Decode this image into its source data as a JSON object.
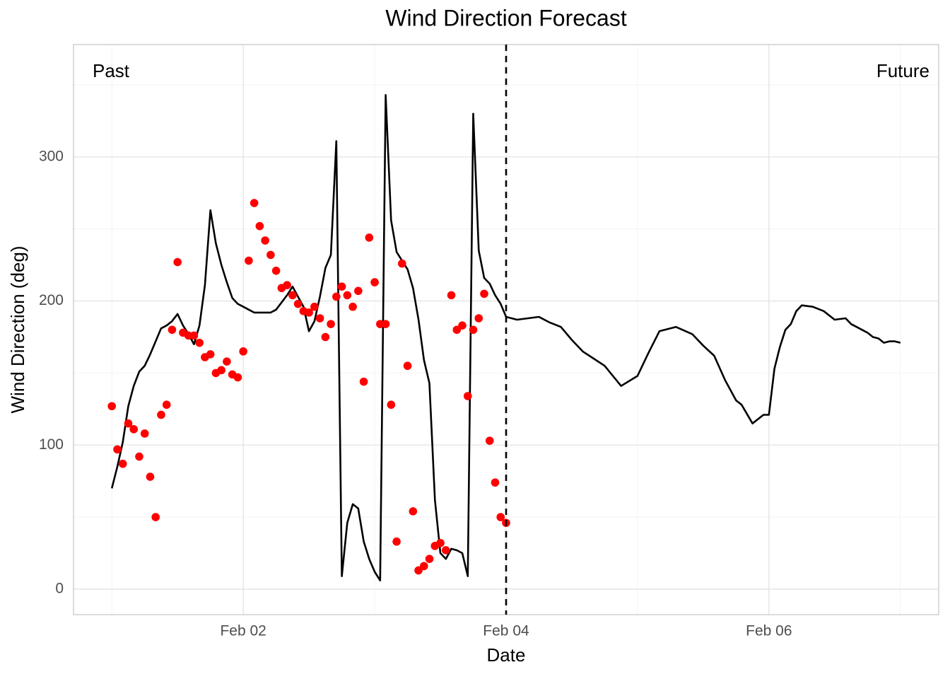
{
  "chart_data": {
    "type": "line",
    "title": "Wind Direction Forecast",
    "x_label": "Date",
    "y_label": "Wind Direction (deg)",
    "annotations": [
      "Past",
      "Future"
    ],
    "vline": 72,
    "xlim": [
      -7,
      151
    ],
    "xticks": [
      {
        "value": 24,
        "label": "Feb 02"
      },
      {
        "value": 72,
        "label": "Feb 04"
      },
      {
        "value": 120,
        "label": "Feb 06"
      }
    ],
    "minor_xticks": [
      0,
      48,
      96,
      144
    ],
    "ylim": [
      -17.7,
      378
    ],
    "yticks": [
      0,
      100,
      200,
      300
    ],
    "minor_yticks": [
      50,
      150,
      250,
      350
    ],
    "grid": true,
    "series": [
      {
        "type": "line",
        "color": "#000000",
        "x": [
          0,
          1,
          2,
          3,
          4,
          5,
          6,
          7,
          8,
          9,
          10,
          11,
          12,
          13,
          14,
          15,
          16,
          17,
          18,
          19,
          20,
          21,
          22,
          23,
          24,
          25,
          26,
          27,
          28,
          29,
          30,
          31,
          32,
          33,
          34,
          35,
          36,
          37,
          38,
          39,
          40,
          41,
          42,
          43,
          44,
          45,
          46,
          47,
          48,
          49,
          50,
          51,
          52,
          53,
          54,
          55,
          56,
          57,
          58,
          59,
          60,
          61,
          62,
          63,
          64,
          65,
          66,
          67,
          68,
          69,
          70,
          71,
          72,
          74,
          76,
          78,
          80,
          82,
          84,
          86,
          88,
          90,
          93,
          96,
          98,
          100,
          103,
          106,
          108,
          110,
          112,
          114,
          115,
          117,
          119,
          120,
          121,
          122,
          123,
          124,
          125,
          126,
          128,
          130,
          132,
          134,
          135,
          136,
          137,
          138,
          139,
          140,
          141,
          142,
          143,
          144
        ],
        "values": [
          70,
          85,
          102,
          127,
          141,
          151,
          155,
          163,
          172,
          181,
          183,
          186,
          191,
          183,
          177,
          170,
          183,
          211,
          263,
          240,
          225,
          213,
          202,
          198,
          196,
          194,
          192,
          192,
          192,
          192,
          194,
          199,
          204,
          210,
          203,
          196,
          179,
          186,
          203,
          223,
          232,
          311,
          9,
          46,
          59,
          56,
          33,
          21,
          12,
          6,
          343,
          256,
          234,
          228,
          222,
          209,
          187,
          159,
          143,
          62,
          25,
          21,
          28,
          27,
          25,
          9,
          330,
          235,
          216,
          212,
          204,
          198,
          189,
          187,
          188,
          189,
          185,
          182,
          173,
          165,
          160,
          155,
          141,
          148,
          164,
          179,
          182,
          177,
          169,
          162,
          145,
          131,
          128,
          115,
          121,
          121,
          153,
          168,
          180,
          184,
          193,
          197,
          196,
          193,
          187,
          188,
          184,
          182,
          180,
          178,
          175,
          174,
          171,
          172,
          172,
          171
        ]
      },
      {
        "type": "scatter",
        "color": "#ff0000",
        "x": [
          0,
          1,
          2,
          3,
          4,
          5,
          6,
          7,
          8,
          9,
          10,
          11,
          12,
          13,
          14,
          15,
          16,
          17,
          18,
          19,
          20,
          21,
          22,
          23,
          24,
          25,
          26,
          27,
          28,
          29,
          30,
          31,
          32,
          33,
          34,
          35,
          36,
          37,
          38,
          39,
          40,
          41,
          42,
          43,
          44,
          45,
          46,
          47,
          48,
          49,
          50,
          51,
          52,
          53,
          54,
          55,
          56,
          57,
          58,
          59,
          60,
          61,
          62,
          63,
          64,
          65,
          66,
          67,
          68,
          69,
          70,
          71,
          72
        ],
        "values": [
          127,
          97,
          87,
          115,
          111,
          92,
          108,
          78,
          50,
          121,
          128,
          180,
          227,
          178,
          176,
          176,
          171,
          161,
          163,
          150,
          152,
          158,
          149,
          147,
          165,
          228,
          268,
          252,
          242,
          232,
          221,
          209,
          211,
          204,
          198,
          193,
          192,
          196,
          188,
          175,
          184,
          203,
          210,
          204,
          196,
          207,
          144,
          244,
          213,
          184,
          184,
          128,
          33,
          226,
          155,
          54,
          13,
          16,
          21,
          30,
          32,
          27,
          204,
          180,
          183,
          134,
          180,
          188,
          205,
          103,
          74,
          50,
          46
        ]
      }
    ]
  }
}
